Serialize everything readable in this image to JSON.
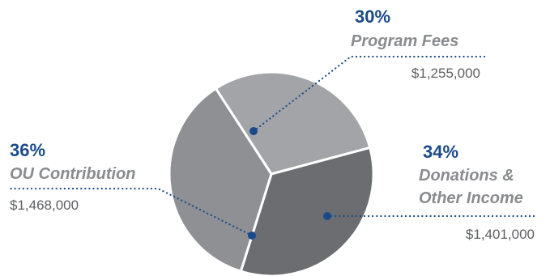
{
  "chart_data": {
    "type": "pie",
    "slices": [
      {
        "percent_label": "30%",
        "category_lines": [
          "Program Fees"
        ],
        "amount": "$1,255,000",
        "value": 30,
        "color": "#a3a4a7"
      },
      {
        "percent_label": "34%",
        "category_lines": [
          "Donations &",
          "Other Income"
        ],
        "amount": "$1,401,000",
        "value": 34,
        "color": "#6c6d71"
      },
      {
        "percent_label": "36%",
        "category_lines": [
          "OU Contribution"
        ],
        "amount": "$1,468,000",
        "value": 36,
        "color": "#8f9094"
      }
    ]
  },
  "colors": {
    "accent": "#1b4a8a",
    "category_text": "#8a8b8e",
    "amount_text": "#5f6063",
    "slice_border": "#ffffff"
  }
}
